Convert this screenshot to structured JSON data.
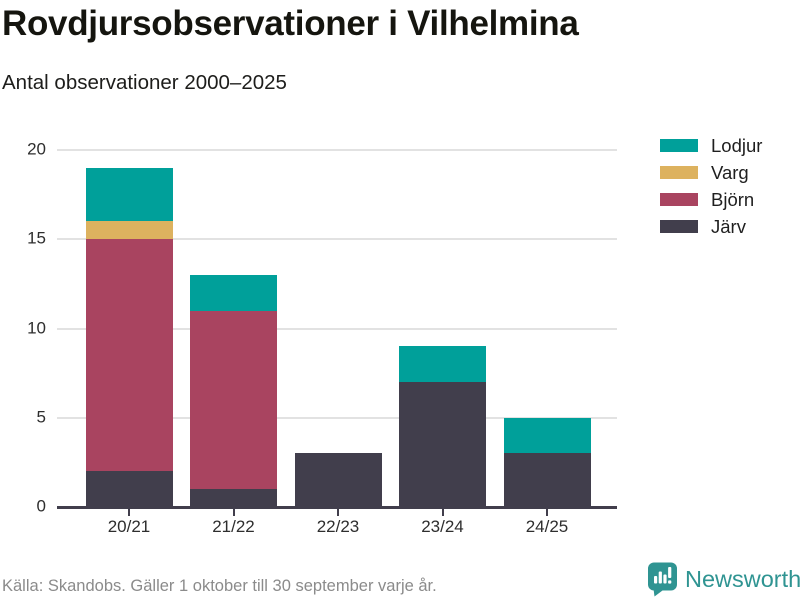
{
  "chart_data": {
    "type": "bar",
    "stacked": true,
    "title": "Rovdjursobservationer i Vilhelmina",
    "subtitle": "Antal observationer 2000–2025",
    "categories": [
      "20/21",
      "21/22",
      "22/23",
      "23/24",
      "24/25"
    ],
    "series": [
      {
        "name": "Lodjur",
        "color": "#00A09A",
        "values": [
          3,
          2,
          0,
          2,
          2
        ]
      },
      {
        "name": "Varg",
        "color": "#DDB25F",
        "values": [
          1,
          0,
          0,
          0,
          0
        ]
      },
      {
        "name": "Björn",
        "color": "#A94460",
        "values": [
          13,
          10,
          0,
          0,
          0
        ]
      },
      {
        "name": "Järv",
        "color": "#413E4C",
        "values": [
          2,
          1,
          3,
          7,
          3
        ]
      }
    ],
    "totals": [
      19,
      13,
      3,
      9,
      5
    ],
    "xlabel": "",
    "ylabel": "",
    "ylim": [
      0,
      20
    ],
    "yticks": [
      0,
      5,
      10,
      15,
      20
    ],
    "grid": true,
    "legend_position": "right"
  },
  "colors": {
    "background": "#FFFFFF",
    "axis": "#413E4C",
    "gridline": "#E2E2E2",
    "text_dark": "#1D1D1B",
    "text_muted": "#8B8B8B",
    "brand_teal": "#2F9492"
  },
  "footer": {
    "source": "Källa: Skandobs. Gäller 1 oktober till 30 september varje år.",
    "brand": "Newsworthy"
  }
}
